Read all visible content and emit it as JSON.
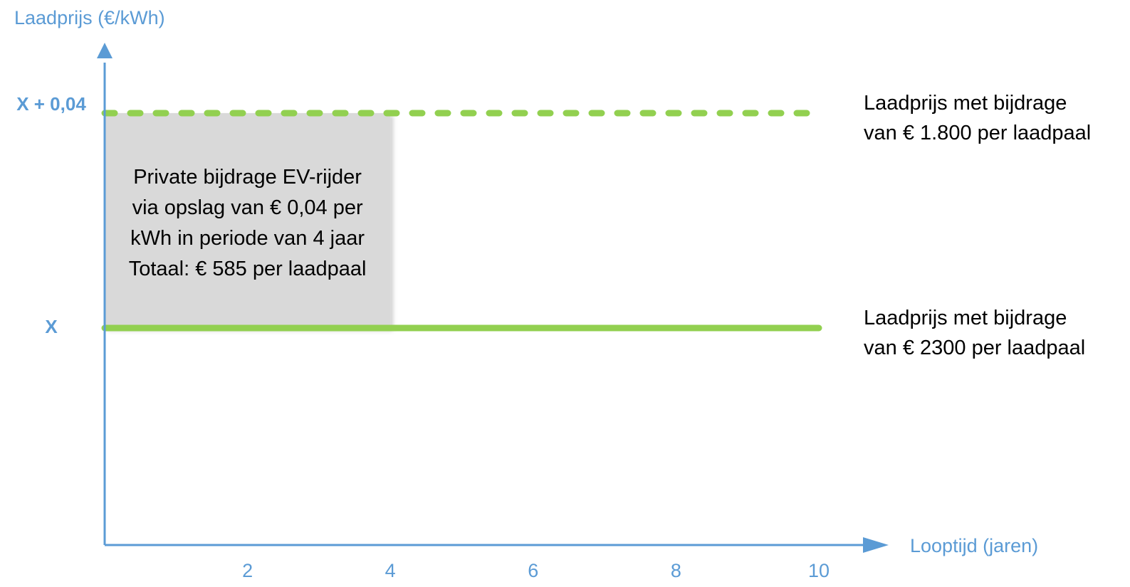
{
  "chart_data": {
    "type": "line",
    "xlabel": "Looptijd (jaren)",
    "ylabel": "Laadprijs (€/kWh)",
    "x_ticks": [
      {
        "value": 2,
        "label": "2"
      },
      {
        "value": 4,
        "label": "4"
      },
      {
        "value": 6,
        "label": "6"
      },
      {
        "value": 8,
        "label": "8"
      },
      {
        "value": 10,
        "label": "10"
      }
    ],
    "y_ticks": [
      {
        "value": 0,
        "label": "X"
      },
      {
        "value": 0.04,
        "label": "X + 0,04"
      }
    ],
    "xlim": [
      0,
      11
    ],
    "ylim": [
      -0.04,
      0.05
    ],
    "grid": false,
    "series": [
      {
        "label_lines": [
          "Laadprijs met bijdrage",
          "van € 1.800 per laadpaal"
        ],
        "x": [
          0,
          10
        ],
        "y": [
          0.04,
          0.04
        ],
        "style": "dashed",
        "color": "#92d050"
      },
      {
        "label_lines": [
          "Laadprijs met bijdrage",
          "van € 2300 per laadpaal"
        ],
        "x": [
          0,
          10
        ],
        "y": [
          0,
          0
        ],
        "style": "solid",
        "color": "#92d050"
      }
    ],
    "annotation": {
      "x_range": [
        0,
        4
      ],
      "y_range": [
        0,
        0.04
      ],
      "fill": "#d9d9d9",
      "lines": [
        "Private bijdrage EV-rijder",
        "via opslag van € 0,04 per",
        "kWh in periode van 4 jaar",
        "Totaal: € 585 per laadpaal"
      ]
    },
    "axis_color": "#5b9bd5"
  }
}
